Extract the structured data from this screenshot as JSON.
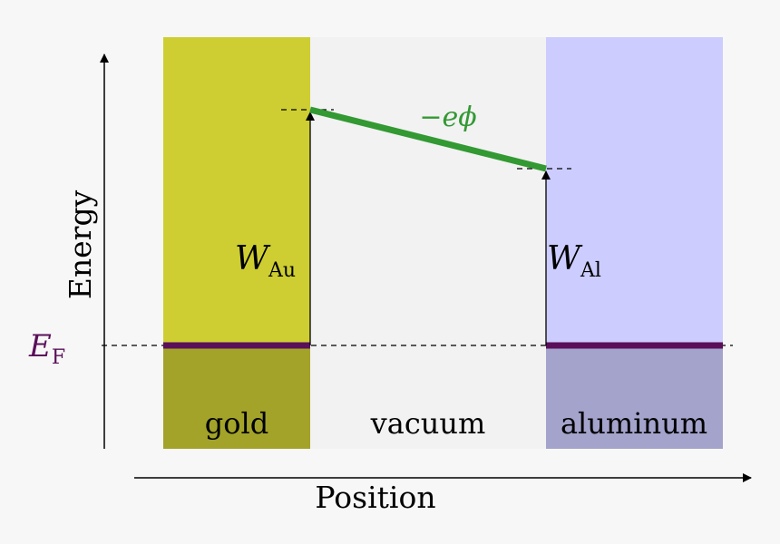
{
  "axes": {
    "y_label": "Energy",
    "x_label": "Position"
  },
  "fermi_level": {
    "symbol": "E",
    "subscript": "F",
    "color": "#5a0f5a"
  },
  "regions": {
    "gold": {
      "label": "gold",
      "upper_color": "#cece32",
      "lower_color": "#a3a32a"
    },
    "vacuum": {
      "label": "vacuum",
      "color": "#f2f2f2"
    },
    "aluminum": {
      "label": "aluminum",
      "upper_color": "#ccccff",
      "lower_color": "#a3a3cc"
    }
  },
  "work_functions": {
    "gold": {
      "symbol": "W",
      "subscript": "Au"
    },
    "aluminum": {
      "symbol": "W",
      "subscript": "Al"
    }
  },
  "potential_drop": {
    "label": "−eϕ",
    "color": "#339933"
  },
  "colors": {
    "background": "#f7f7f7",
    "ink": "#000000"
  }
}
